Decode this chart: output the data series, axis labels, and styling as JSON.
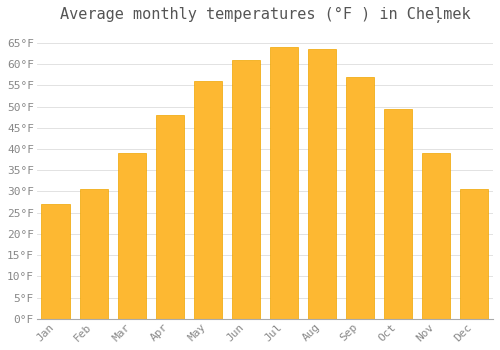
{
  "title": "Average monthly temperatures (°F ) in Cheļmek",
  "months": [
    "Jan",
    "Feb",
    "Mar",
    "Apr",
    "May",
    "Jun",
    "Jul",
    "Aug",
    "Sep",
    "Oct",
    "Nov",
    "Dec"
  ],
  "values": [
    27,
    30.5,
    39,
    48,
    56,
    61,
    64,
    63.5,
    57,
    49.5,
    39,
    30.5
  ],
  "bar_color": "#FDB832",
  "bar_edge_color": "#F0A500",
  "background_color": "#FFFFFF",
  "grid_color": "#DDDDDD",
  "text_color": "#888888",
  "title_color": "#555555",
  "ylim": [
    0,
    68
  ],
  "yticks": [
    0,
    5,
    10,
    15,
    20,
    25,
    30,
    35,
    40,
    45,
    50,
    55,
    60,
    65
  ],
  "title_fontsize": 11,
  "tick_fontsize": 8,
  "bar_width": 0.75,
  "font_family": "monospace"
}
